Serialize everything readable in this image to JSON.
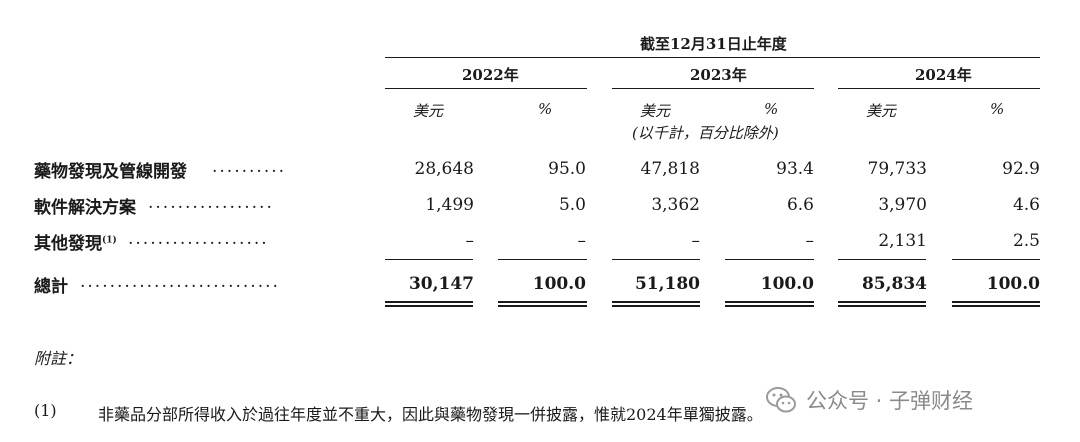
{
  "header": {
    "period_title": "截至12月31日止年度",
    "years": [
      "2022年",
      "2023年",
      "2024年"
    ],
    "unit_currency": "美元",
    "unit_percent": "%",
    "unit_note": "(以千計，百分比除外)"
  },
  "rows": [
    {
      "label": "藥物發現及管線開發",
      "dots": "..........",
      "values": [
        "28,648",
        "95.0",
        "47,818",
        "93.4",
        "79,733",
        "92.9"
      ]
    },
    {
      "label": "軟件解決方案",
      "dots": ".................",
      "values": [
        "1,499",
        "5.0",
        "3,362",
        "6.6",
        "3,970",
        "4.6"
      ]
    },
    {
      "label": "其他發現",
      "sup": "(1)",
      "dots": "...................",
      "values": [
        "–",
        "–",
        "–",
        "–",
        "2,131",
        "2.5"
      ]
    }
  ],
  "total": {
    "label": "總計",
    "dots": "...........................",
    "values": [
      "30,147",
      "100.0",
      "51,180",
      "100.0",
      "85,834",
      "100.0"
    ]
  },
  "notes": {
    "heading": "附註：",
    "items": [
      {
        "marker": "(1)",
        "text": "非藥品分部所得收入於過往年度並不重大，因此與藥物發現一併披露，惟就2024年單獨披露。"
      }
    ]
  },
  "watermark": {
    "text": "公众号 · 子弹财经",
    "icon": "wechat-icon"
  }
}
